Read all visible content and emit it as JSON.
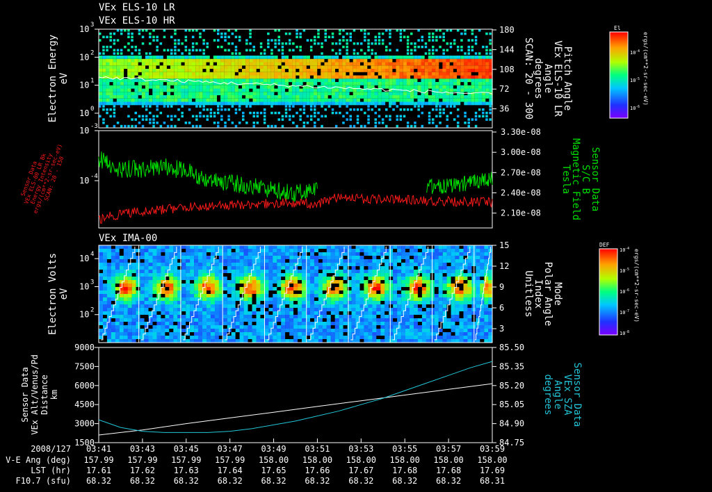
{
  "titles": {
    "els_lr": "VEx ELS-10 LR",
    "els_hr": "VEx ELS-10 HR",
    "ima": "VEx IMA-00"
  },
  "colors": {
    "background": "#000000",
    "foreground": "#ffffff",
    "green_trace": "#00e000",
    "red_trace": "#ff1a1a",
    "cyan_trace": "#22c6d8"
  },
  "chart_data": [
    {
      "type": "heatmap",
      "name": "els",
      "ylabel": [
        "Electron Energy",
        "eV"
      ],
      "yscale": "log",
      "ylim": [
        0.3,
        1000
      ],
      "yticks": [
        {
          "v": 1,
          "label": "10"
        },
        {
          "v": 10,
          "label": "10"
        },
        {
          "v": 100,
          "label": "10"
        },
        {
          "v": 1000,
          "label": "10"
        }
      ],
      "yticks_exp": [
        "0",
        "1",
        "2",
        "3"
      ],
      "ylabel_right": [
        "Pitch Angle",
        "VEx ELS-10 LR",
        "Angle",
        "degrees",
        "SCAN: 20 - 300"
      ],
      "yticks_right": [
        "180",
        "144",
        "108",
        "72",
        "36"
      ],
      "colorbar": {
        "title": "El",
        "unit": "ergs/(cm**2-sr-sec-eV)",
        "ticks": [
          "10",
          "10",
          "10"
        ],
        "ticks_exp": [
          "-4",
          "-5",
          "-6"
        ]
      },
      "overlay": "white pitch-angle trace decreasing from ~90 to ~60 deg"
    },
    {
      "type": "line",
      "name": "mag",
      "ylabel_left": [
        "Sensor Data",
        "VEx ELS-00 LR Bk",
        "Energy Intensity",
        "ergs/(cm**2-sr-sec-eV)",
        "SCAN: 20 - 150"
      ],
      "yscale_left": "log",
      "yticks_left": [
        {
          "label": "10",
          "exp": "-3"
        },
        {
          "label": "10",
          "exp": "-4"
        }
      ],
      "ylabel_right": [
        "Sensor Data",
        "S/C B",
        "Magnetic Field",
        "Tesla"
      ],
      "ylim_right": [
        1.9e-08,
        3.3e-08
      ],
      "yticks_right": [
        "3.30e-08",
        "3.00e-08",
        "2.70e-08",
        "2.40e-08",
        "2.10e-08"
      ],
      "series": [
        {
          "name": "S/C B",
          "color": "green",
          "x": [
            "03:41",
            "03:42",
            "03:43",
            "03:44",
            "03:45",
            "03:46",
            "03:47",
            "03:48",
            "03:49",
            "03:50",
            "03:51",
            "03:56",
            "03:57",
            "03:58",
            "03:59"
          ],
          "values": [
            2.9e-08,
            2.75e-08,
            2.75e-08,
            2.78e-08,
            2.72e-08,
            2.6e-08,
            2.55e-08,
            2.5e-08,
            2.45e-08,
            2.4e-08,
            2.48e-08,
            2.5e-08,
            2.5e-08,
            2.55e-08,
            2.6e-08
          ]
        },
        {
          "name": "Energy Intensity",
          "color": "red",
          "x": [
            "03:41",
            "03:42",
            "03:43",
            "03:44",
            "03:45",
            "03:46",
            "03:47",
            "03:48",
            "03:49",
            "03:50",
            "03:51",
            "03:52",
            "03:53",
            "03:54",
            "03:55",
            "03:56",
            "03:57",
            "03:58",
            "03:59"
          ],
          "values": [
            1.2e-05,
            1.6e-05,
            1.8e-05,
            2e-05,
            2.2e-05,
            2.4e-05,
            2.5e-05,
            2.6e-05,
            2.7e-05,
            2.7e-05,
            2.6e-05,
            3.8e-05,
            3.4e-05,
            3.3e-05,
            3.2e-05,
            3.1e-05,
            3e-05,
            2.9e-05,
            2.8e-05
          ]
        }
      ]
    },
    {
      "type": "heatmap",
      "name": "ima",
      "ylabel": [
        "Electron Volts",
        "eV"
      ],
      "yscale": "log",
      "ylim": [
        10,
        30000
      ],
      "yticks": [
        {
          "v": 100,
          "label": "10",
          "exp": "2"
        },
        {
          "v": 1000,
          "label": "10",
          "exp": "3"
        },
        {
          "v": 10000,
          "label": "10",
          "exp": "4"
        }
      ],
      "ylabel_right": [
        "Mode",
        "Polar Angle",
        "Index",
        "Unitless"
      ],
      "ylim_right": [
        1,
        15
      ],
      "yticks_right": [
        "15",
        "12",
        "9",
        "6",
        "3"
      ],
      "colorbar": {
        "title": "DEF",
        "unit": "ergs/(cm**2-sr-sec-eV)",
        "ticks": [
          "10",
          "10",
          "10",
          "10",
          "10"
        ],
        "ticks_exp": [
          "-4",
          "-5",
          "-6",
          "-7",
          "-8"
        ]
      },
      "sweep_boundaries": [
        "03:41",
        "03:42:50",
        "03:44:45",
        "03:46:40",
        "03:48:35",
        "03:50:30",
        "03:52:25",
        "03:54:20",
        "03:56:15",
        "03:58:10"
      ]
    },
    {
      "type": "line",
      "name": "geom",
      "ylabel_left": [
        "Sensor Data",
        "VEx Alt/Venus/Pd",
        "Distance",
        "km"
      ],
      "ylim_left": [
        1500,
        9000
      ],
      "yticks_left": [
        "9000",
        "7500",
        "6000",
        "4500",
        "3000",
        "1500"
      ],
      "ylabel_right": [
        "Sensor Data",
        "VEx SZA",
        "Angle",
        "degrees"
      ],
      "ylim_right": [
        84.75,
        85.5
      ],
      "yticks_right": [
        "85.50",
        "85.35",
        "85.20",
        "85.05",
        "84.90",
        "84.75"
      ],
      "series": [
        {
          "name": "Alt",
          "color": "white",
          "x": [
            "03:41",
            "03:43",
            "03:45",
            "03:47",
            "03:49",
            "03:51",
            "03:53",
            "03:55",
            "03:57",
            "03:59"
          ],
          "values": [
            2100,
            2500,
            3000,
            3450,
            3900,
            4350,
            4800,
            5250,
            5700,
            6150
          ]
        },
        {
          "name": "SZA",
          "color": "cyan",
          "x": [
            "03:41",
            "03:42",
            "03:43",
            "03:44",
            "03:45",
            "03:46",
            "03:47",
            "03:48",
            "03:49",
            "03:50",
            "03:51",
            "03:52",
            "03:53",
            "03:54",
            "03:55",
            "03:56",
            "03:57",
            "03:58",
            "03:59"
          ],
          "values": [
            84.93,
            84.87,
            84.84,
            84.83,
            84.83,
            84.83,
            84.84,
            84.86,
            84.89,
            84.92,
            84.96,
            85.0,
            85.05,
            85.1,
            85.16,
            85.22,
            85.28,
            85.34,
            85.39
          ]
        }
      ]
    }
  ],
  "x_axis": {
    "date": "2008/127",
    "times": [
      "03:41",
      "03:43",
      "03:45",
      "03:47",
      "03:49",
      "03:51",
      "03:53",
      "03:55",
      "03:57",
      "03:59"
    ]
  },
  "ephemeris": [
    {
      "label": "V-E Ang (deg)",
      "values": [
        "157.99",
        "157.99",
        "157.99",
        "157.99",
        "158.00",
        "158.00",
        "158.00",
        "158.00",
        "158.00",
        "158.00"
      ]
    },
    {
      "label": "LST (hr)",
      "values": [
        "17.61",
        "17.62",
        "17.63",
        "17.64",
        "17.65",
        "17.66",
        "17.67",
        "17.68",
        "17.68",
        "17.69"
      ]
    },
    {
      "label": "F10.7 (sfu)",
      "values": [
        "68.32",
        "68.32",
        "68.32",
        "68.32",
        "68.32",
        "68.32",
        "68.32",
        "68.32",
        "68.32",
        "68.31"
      ]
    }
  ]
}
